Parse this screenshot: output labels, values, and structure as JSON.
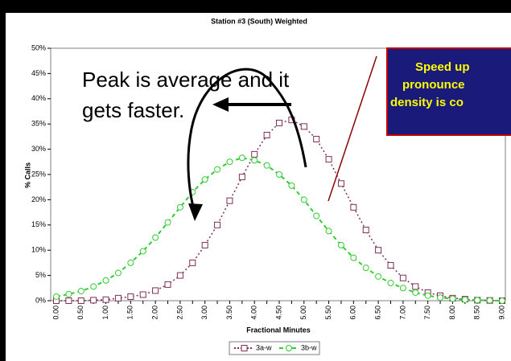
{
  "chart_data": {
    "type": "line",
    "title": "Station #3 (South) Weighted",
    "x_label": "Fractional Minutes",
    "y_label": "% Calls",
    "categories": [
      "0.00",
      null,
      "0.50",
      null,
      "1.00",
      null,
      "1.50",
      null,
      "2.00",
      null,
      "2.50",
      null,
      "3.00",
      null,
      "3.50",
      null,
      "4.00",
      null,
      "4.50",
      null,
      "5.00",
      null,
      "5.50",
      null,
      "6.00",
      null,
      "6.50",
      null,
      "7.00",
      null,
      "7.50",
      null,
      "8.00",
      null,
      "8.50",
      null,
      "9.00"
    ],
    "series": [
      {
        "name": "3a-w",
        "color": "#7f2f55",
        "values": [
          0,
          0,
          0,
          0.1,
          0.2,
          0.5,
          0.8,
          1.2,
          2,
          3.2,
          5,
          7.5,
          11,
          15,
          19.8,
          24.5,
          29,
          32.8,
          35.2,
          35.8,
          34.5,
          32,
          28,
          23.2,
          18.5,
          14,
          10,
          7,
          4.5,
          2.8,
          1.6,
          1,
          0.5,
          0.3,
          0.1,
          0.05,
          0
        ]
      },
      {
        "name": "3b-w",
        "color": "#33cc33",
        "values": [
          0.8,
          1.3,
          1.9,
          2.8,
          4,
          5.5,
          7.5,
          9.8,
          12.5,
          15.5,
          18.5,
          21.5,
          24,
          26,
          27.5,
          28.3,
          27.8,
          26.8,
          25,
          22.8,
          20,
          16.8,
          13.8,
          11,
          8.5,
          6.5,
          4.8,
          3.5,
          2.5,
          1.6,
          1,
          0.6,
          0.4,
          0.2,
          0.1,
          0.05,
          0
        ]
      }
    ],
    "ylim": [
      0,
      50
    ],
    "yticks": [
      {
        "value": 0,
        "label": "0%"
      },
      {
        "value": 5,
        "label": "5%"
      },
      {
        "value": 10,
        "label": "10%"
      },
      {
        "value": 15,
        "label": "15%"
      },
      {
        "value": 20,
        "label": "20%"
      },
      {
        "value": 25,
        "label": "25%"
      },
      {
        "value": 30,
        "label": "30%"
      },
      {
        "value": 35,
        "label": "35%"
      },
      {
        "value": 40,
        "label": "40%"
      },
      {
        "value": 45,
        "label": "45%"
      },
      {
        "value": 50,
        "label": "50%"
      }
    ],
    "legend": "bottom",
    "annotations": [
      "Peak is average and it",
      "gets faster."
    ],
    "callout": [
      "Speed up",
      "pronounce",
      "density is co"
    ]
  }
}
